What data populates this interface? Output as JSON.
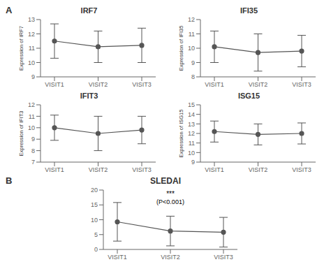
{
  "chart_data": [
    {
      "type": "line",
      "title": "IRF7",
      "ylabel": "Expression of IRF7",
      "categories": [
        "VISIT1",
        "VISIT2",
        "VISIT3"
      ],
      "values": [
        11.5,
        11.1,
        11.2
      ],
      "errors": [
        1.2,
        1.1,
        1.2
      ],
      "ylim": [
        9,
        13
      ],
      "yticks": [
        9,
        10,
        11,
        12,
        13
      ],
      "color": "#555555",
      "marker": "circle",
      "grid": false,
      "annotations": [
        {
          "text": "A"
        }
      ]
    },
    {
      "type": "line",
      "title": "IFI35",
      "ylabel": "Expression of IFI35",
      "categories": [
        "VISIT1",
        "VISIT2",
        "VISIT3"
      ],
      "values": [
        10.1,
        9.7,
        9.8
      ],
      "errors": [
        1.1,
        1.3,
        1.1
      ],
      "ylim": [
        8,
        12
      ],
      "yticks": [
        8,
        9,
        10,
        11,
        12
      ],
      "color": "#555555",
      "marker": "circle",
      "grid": false
    },
    {
      "type": "line",
      "title": "IFIT3",
      "ylabel": "Expression of IFIT3",
      "categories": [
        "VISIT1",
        "VISIT2",
        "VISIT3"
      ],
      "values": [
        10.0,
        9.5,
        9.8
      ],
      "errors": [
        1.1,
        1.5,
        1.2
      ],
      "ylim": [
        7,
        12
      ],
      "yticks": [
        7,
        8,
        9,
        10,
        11,
        12
      ],
      "color": "#555555",
      "marker": "circle",
      "grid": false
    },
    {
      "type": "line",
      "title": "ISG15",
      "ylabel": "Expression of ISG15",
      "categories": [
        "VISIT1",
        "VISIT2",
        "VISIT3"
      ],
      "values": [
        12.2,
        11.9,
        12.0
      ],
      "errors": [
        1.1,
        1.1,
        1.1
      ],
      "ylim": [
        9,
        15
      ],
      "yticks": [
        9,
        10,
        11,
        12,
        13,
        14,
        15
      ],
      "color": "#555555",
      "marker": "circle",
      "grid": false
    },
    {
      "type": "line",
      "title": "SLEDAI",
      "categories": [
        "VISIT1",
        "VISIT2",
        "VISIT3"
      ],
      "values": [
        9.3,
        6.2,
        5.8
      ],
      "errors": [
        6.5,
        5.0,
        5.0
      ],
      "ylim": [
        0,
        20
      ],
      "yticks": [
        0,
        5,
        10,
        15,
        20
      ],
      "color": "#555555",
      "marker": "circle",
      "grid": false,
      "annotations": [
        {
          "text": "B"
        },
        {
          "text": "***",
          "x": "VISIT2"
        },
        {
          "text": "(P<0.001)",
          "x": "VISIT2"
        }
      ]
    }
  ]
}
